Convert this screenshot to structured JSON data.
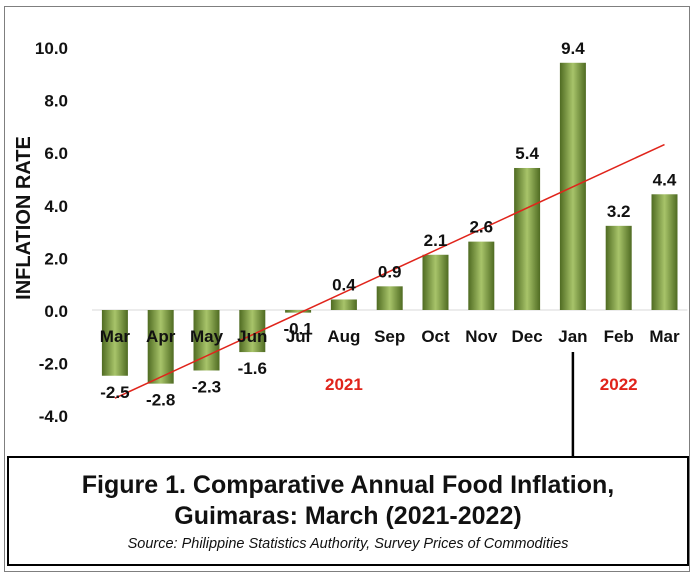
{
  "caption": {
    "title": "Figure 1. Comparative Annual Food Inflation,\nGuimaras: March (2021-2022)",
    "source": "Source: Philippine Statistics Authority, Survey Prices of Commodities"
  },
  "chart_data": {
    "type": "bar",
    "ylabel": "INFLATION RATE",
    "ylim": [
      -4.0,
      10.0
    ],
    "yticks": [
      "10.0",
      "8.0",
      "6.0",
      "4.0",
      "2.0",
      "0.0",
      "-2.0",
      "-4.0"
    ],
    "ytick_values": [
      10,
      8,
      6,
      4,
      2,
      0,
      -2,
      -4
    ],
    "categories": [
      "Mar",
      "Apr",
      "May",
      "Jun",
      "Jul",
      "Aug",
      "Sep",
      "Oct",
      "Nov",
      "Dec",
      "Jan",
      "Feb",
      "Mar"
    ],
    "values": [
      -2.5,
      -2.8,
      -2.3,
      -1.6,
      -0.1,
      0.4,
      0.9,
      2.1,
      2.6,
      5.4,
      9.4,
      3.2,
      4.4
    ],
    "data_labels": [
      "-2.5",
      "-2.8",
      "-2.3",
      "-1.6",
      "-0.1",
      "0.4",
      "0.9",
      "2.1",
      "2.6",
      "5.4",
      "9.4",
      "3.2",
      "4.4"
    ],
    "year_labels": [
      {
        "text": "2021",
        "under_category_index": 5
      },
      {
        "text": "2022",
        "under_category_index": 11
      }
    ],
    "trendline": {
      "type": "linear",
      "color": "#e0241b"
    },
    "grid": false,
    "legend": "none",
    "colors": {
      "bar_dark": "#4f6b22",
      "bar_light": "#a8c46a",
      "year_label": "#e0241b"
    }
  }
}
